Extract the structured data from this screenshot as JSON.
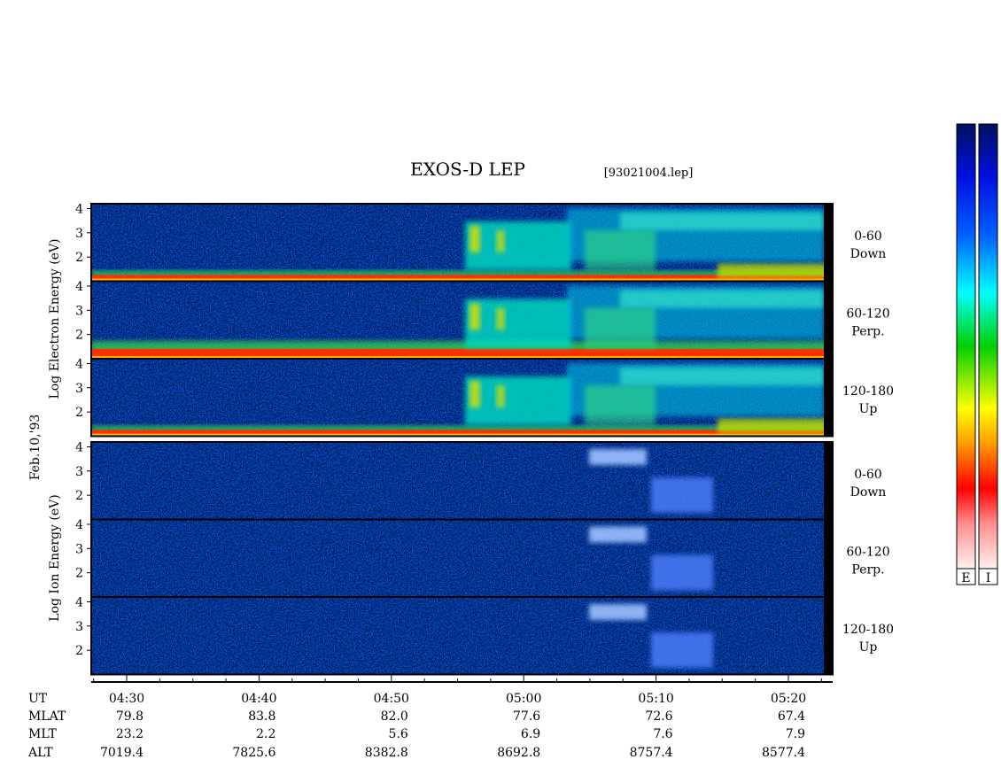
{
  "header": {
    "title": "EXOS-D LEP",
    "file": "[93021004.lep]",
    "date": "Feb.10,'93"
  },
  "energy_axis": {
    "ylim": [
      1,
      4.2
    ],
    "yticks": [
      2,
      3,
      4
    ]
  },
  "electron": {
    "ylabel": "Log  Electron  Energy (eV)",
    "panels": [
      {
        "angle": "0-60",
        "dir": "Down"
      },
      {
        "angle": "60-120",
        "dir": "Perp."
      },
      {
        "angle": "120-180",
        "dir": "Up"
      }
    ]
  },
  "ion": {
    "ylabel": "Log  Ion  Energy (eV)",
    "panels": [
      {
        "angle": "0-60",
        "dir": "Down"
      },
      {
        "angle": "60-120",
        "dir": "Perp."
      },
      {
        "angle": "120-180",
        "dir": "Up"
      }
    ]
  },
  "orbit": [
    {
      "label": "UT",
      "values": [
        "04:30",
        "04:40",
        "04:50",
        "05:00",
        "05:10",
        "05:20"
      ]
    },
    {
      "label": "MLAT",
      "values": [
        "79.8",
        "83.8",
        "82.0",
        "77.6",
        "72.6",
        "67.4"
      ]
    },
    {
      "label": "MLT",
      "values": [
        "23.2",
        "2.2",
        "5.6",
        "6.9",
        "7.6",
        "7.9"
      ]
    },
    {
      "label": "ALT",
      "values": [
        "7019.4",
        "7825.6",
        "8382.8",
        "8692.8",
        "8757.4",
        "8577.4"
      ]
    }
  ],
  "colorbars": [
    "E",
    "I"
  ]
}
